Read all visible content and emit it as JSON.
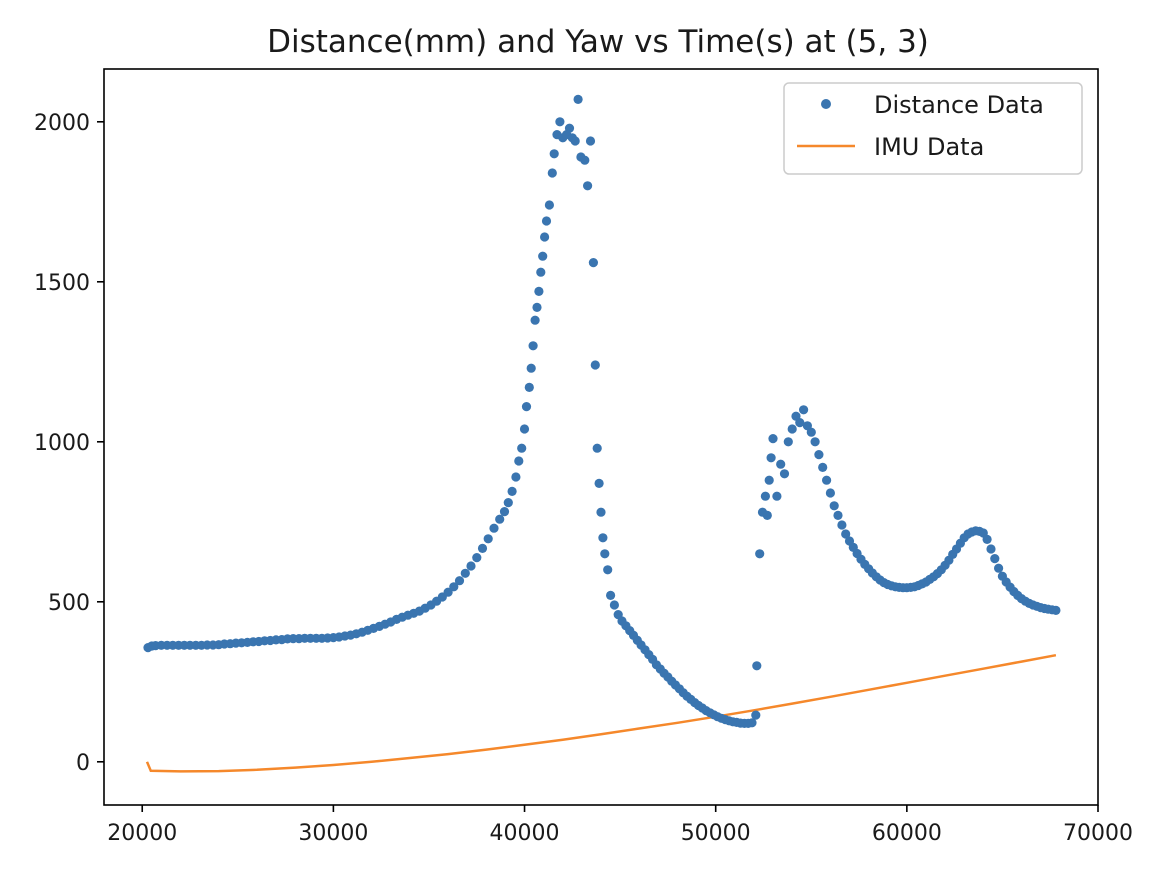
{
  "chart_data": {
    "type": "scatter",
    "title": "Distance(mm) and Yaw vs Time(s) at (5, 3)",
    "xlabel": "",
    "ylabel": "",
    "xlim": [
      18000,
      70000
    ],
    "ylim": [
      -135,
      2165
    ],
    "x_ticks": [
      20000,
      30000,
      40000,
      50000,
      60000,
      70000
    ],
    "y_ticks": [
      0,
      500,
      1000,
      1500,
      2000
    ],
    "x_tick_labels": [
      "20000",
      "30000",
      "40000",
      "50000",
      "60000",
      "70000"
    ],
    "y_tick_labels": [
      "0",
      "500",
      "1000",
      "1500",
      "2000"
    ],
    "grid": false,
    "legend_position": "upper-right",
    "series": [
      {
        "name": "Distance Data",
        "kind": "scatter",
        "color": "#3a75b0",
        "points": [
          [
            20300,
            357
          ],
          [
            20500,
            362
          ],
          [
            20700,
            363
          ],
          [
            21000,
            364
          ],
          [
            21300,
            364
          ],
          [
            21600,
            364
          ],
          [
            21900,
            364
          ],
          [
            22200,
            364
          ],
          [
            22500,
            364
          ],
          [
            22800,
            364
          ],
          [
            23100,
            364
          ],
          [
            23400,
            365
          ],
          [
            23700,
            365
          ],
          [
            24000,
            366
          ],
          [
            24300,
            368
          ],
          [
            24600,
            369
          ],
          [
            24900,
            371
          ],
          [
            25200,
            372
          ],
          [
            25500,
            373
          ],
          [
            25800,
            375
          ],
          [
            26100,
            376
          ],
          [
            26400,
            378
          ],
          [
            26700,
            379
          ],
          [
            27000,
            381
          ],
          [
            27300,
            382
          ],
          [
            27600,
            384
          ],
          [
            27900,
            385
          ],
          [
            28200,
            385
          ],
          [
            28500,
            386
          ],
          [
            28800,
            386
          ],
          [
            29100,
            386
          ],
          [
            29400,
            386
          ],
          [
            29700,
            387
          ],
          [
            30000,
            388
          ],
          [
            30300,
            390
          ],
          [
            30600,
            393
          ],
          [
            30900,
            396
          ],
          [
            31200,
            400
          ],
          [
            31500,
            405
          ],
          [
            31800,
            411
          ],
          [
            32100,
            417
          ],
          [
            32400,
            423
          ],
          [
            32700,
            430
          ],
          [
            33000,
            437
          ],
          [
            33300,
            445
          ],
          [
            33600,
            452
          ],
          [
            33900,
            458
          ],
          [
            34200,
            464
          ],
          [
            34500,
            471
          ],
          [
            34800,
            480
          ],
          [
            35100,
            490
          ],
          [
            35400,
            502
          ],
          [
            35700,
            515
          ],
          [
            36000,
            530
          ],
          [
            36300,
            547
          ],
          [
            36600,
            566
          ],
          [
            36900,
            589
          ],
          [
            37200,
            612
          ],
          [
            37500,
            638
          ],
          [
            37800,
            667
          ],
          [
            38100,
            697
          ],
          [
            38400,
            730
          ],
          [
            38700,
            758
          ],
          [
            38950,
            782
          ],
          [
            39150,
            810
          ],
          [
            39350,
            845
          ],
          [
            39550,
            890
          ],
          [
            39700,
            940
          ],
          [
            39850,
            980
          ],
          [
            40000,
            1040
          ],
          [
            40100,
            1110
          ],
          [
            40250,
            1170
          ],
          [
            40350,
            1230
          ],
          [
            40450,
            1300
          ],
          [
            40550,
            1380
          ],
          [
            40650,
            1420
          ],
          [
            40750,
            1470
          ],
          [
            40850,
            1530
          ],
          [
            40950,
            1580
          ],
          [
            41050,
            1640
          ],
          [
            41150,
            1690
          ],
          [
            41300,
            1740
          ],
          [
            41450,
            1840
          ],
          [
            41550,
            1900
          ],
          [
            41700,
            1960
          ],
          [
            41850,
            2000
          ],
          [
            42000,
            1950
          ],
          [
            42200,
            1960
          ],
          [
            42350,
            1980
          ],
          [
            42500,
            1950
          ],
          [
            42650,
            1940
          ],
          [
            42800,
            2070
          ],
          [
            42950,
            1890
          ],
          [
            43150,
            1880
          ],
          [
            43300,
            1800
          ],
          [
            43450,
            1940
          ],
          [
            43600,
            1560
          ],
          [
            43700,
            1240
          ],
          [
            43800,
            980
          ],
          [
            43900,
            870
          ],
          [
            44000,
            780
          ],
          [
            44100,
            700
          ],
          [
            44200,
            650
          ],
          [
            44350,
            600
          ],
          [
            44500,
            520
          ],
          [
            44700,
            490
          ],
          [
            44900,
            460
          ],
          [
            45100,
            440
          ],
          [
            45300,
            425
          ],
          [
            45500,
            410
          ],
          [
            45700,
            395
          ],
          [
            45900,
            380
          ],
          [
            46100,
            365
          ],
          [
            46300,
            350
          ],
          [
            46500,
            335
          ],
          [
            46700,
            320
          ],
          [
            46900,
            303
          ],
          [
            47100,
            290
          ],
          [
            47300,
            277
          ],
          [
            47500,
            265
          ],
          [
            47700,
            252
          ],
          [
            47900,
            240
          ],
          [
            48100,
            228
          ],
          [
            48300,
            216
          ],
          [
            48500,
            205
          ],
          [
            48700,
            195
          ],
          [
            48900,
            185
          ],
          [
            49100,
            176
          ],
          [
            49300,
            168
          ],
          [
            49500,
            160
          ],
          [
            49700,
            153
          ],
          [
            49900,
            147
          ],
          [
            50100,
            141
          ],
          [
            50300,
            136
          ],
          [
            50500,
            132
          ],
          [
            50700,
            128
          ],
          [
            50900,
            125
          ],
          [
            51100,
            123
          ],
          [
            51300,
            121
          ],
          [
            51500,
            120
          ],
          [
            51700,
            120
          ],
          [
            51900,
            122
          ],
          [
            52100,
            146
          ],
          [
            52150,
            300
          ],
          [
            52300,
            650
          ],
          [
            52450,
            780
          ],
          [
            52600,
            830
          ],
          [
            52700,
            770
          ],
          [
            52800,
            880
          ],
          [
            52900,
            950
          ],
          [
            53000,
            1010
          ],
          [
            53200,
            830
          ],
          [
            53400,
            930
          ],
          [
            53600,
            900
          ],
          [
            53800,
            1000
          ],
          [
            54000,
            1040
          ],
          [
            54200,
            1080
          ],
          [
            54400,
            1060
          ],
          [
            54600,
            1100
          ],
          [
            54800,
            1050
          ],
          [
            55000,
            1030
          ],
          [
            55200,
            1000
          ],
          [
            55400,
            960
          ],
          [
            55600,
            920
          ],
          [
            55800,
            880
          ],
          [
            56000,
            840
          ],
          [
            56200,
            800
          ],
          [
            56400,
            770
          ],
          [
            56600,
            740
          ],
          [
            56800,
            712
          ],
          [
            57000,
            690
          ],
          [
            57200,
            670
          ],
          [
            57400,
            651
          ],
          [
            57600,
            633
          ],
          [
            57800,
            617
          ],
          [
            58000,
            603
          ],
          [
            58200,
            590
          ],
          [
            58400,
            578
          ],
          [
            58600,
            568
          ],
          [
            58800,
            560
          ],
          [
            59000,
            554
          ],
          [
            59200,
            550
          ],
          [
            59400,
            547
          ],
          [
            59600,
            545
          ],
          [
            59800,
            544
          ],
          [
            60000,
            544
          ],
          [
            60200,
            545
          ],
          [
            60400,
            547
          ],
          [
            60600,
            551
          ],
          [
            60800,
            556
          ],
          [
            61000,
            562
          ],
          [
            61200,
            570
          ],
          [
            61400,
            578
          ],
          [
            61600,
            588
          ],
          [
            61800,
            600
          ],
          [
            62000,
            614
          ],
          [
            62200,
            630
          ],
          [
            62400,
            648
          ],
          [
            62600,
            665
          ],
          [
            62800,
            683
          ],
          [
            63000,
            700
          ],
          [
            63200,
            712
          ],
          [
            63400,
            718
          ],
          [
            63600,
            722
          ],
          [
            63800,
            720
          ],
          [
            64000,
            715
          ],
          [
            64200,
            695
          ],
          [
            64400,
            665
          ],
          [
            64600,
            635
          ],
          [
            64800,
            605
          ],
          [
            65000,
            580
          ],
          [
            65200,
            562
          ],
          [
            65400,
            546
          ],
          [
            65600,
            532
          ],
          [
            65800,
            520
          ],
          [
            66000,
            510
          ],
          [
            66200,
            502
          ],
          [
            66400,
            495
          ],
          [
            66600,
            490
          ],
          [
            66800,
            486
          ],
          [
            67000,
            482
          ],
          [
            67200,
            479
          ],
          [
            67400,
            477
          ],
          [
            67600,
            475
          ],
          [
            67800,
            473
          ]
        ]
      },
      {
        "name": "IMU Data",
        "kind": "line",
        "color": "#f5882b",
        "points": [
          [
            20250,
            0
          ],
          [
            20450,
            -28
          ],
          [
            22000,
            -30
          ],
          [
            24000,
            -29
          ],
          [
            26000,
            -25
          ],
          [
            28000,
            -18
          ],
          [
            30000,
            -10
          ],
          [
            32000,
            0
          ],
          [
            34000,
            12
          ],
          [
            36000,
            24
          ],
          [
            38000,
            38
          ],
          [
            40000,
            53
          ],
          [
            42000,
            69
          ],
          [
            44000,
            86
          ],
          [
            46000,
            104
          ],
          [
            48000,
            122
          ],
          [
            50000,
            141
          ],
          [
            52000,
            161
          ],
          [
            54000,
            182
          ],
          [
            56000,
            203
          ],
          [
            58000,
            225
          ],
          [
            60000,
            247
          ],
          [
            62000,
            269
          ],
          [
            64000,
            291
          ],
          [
            66000,
            313
          ],
          [
            67800,
            333
          ]
        ]
      }
    ]
  }
}
